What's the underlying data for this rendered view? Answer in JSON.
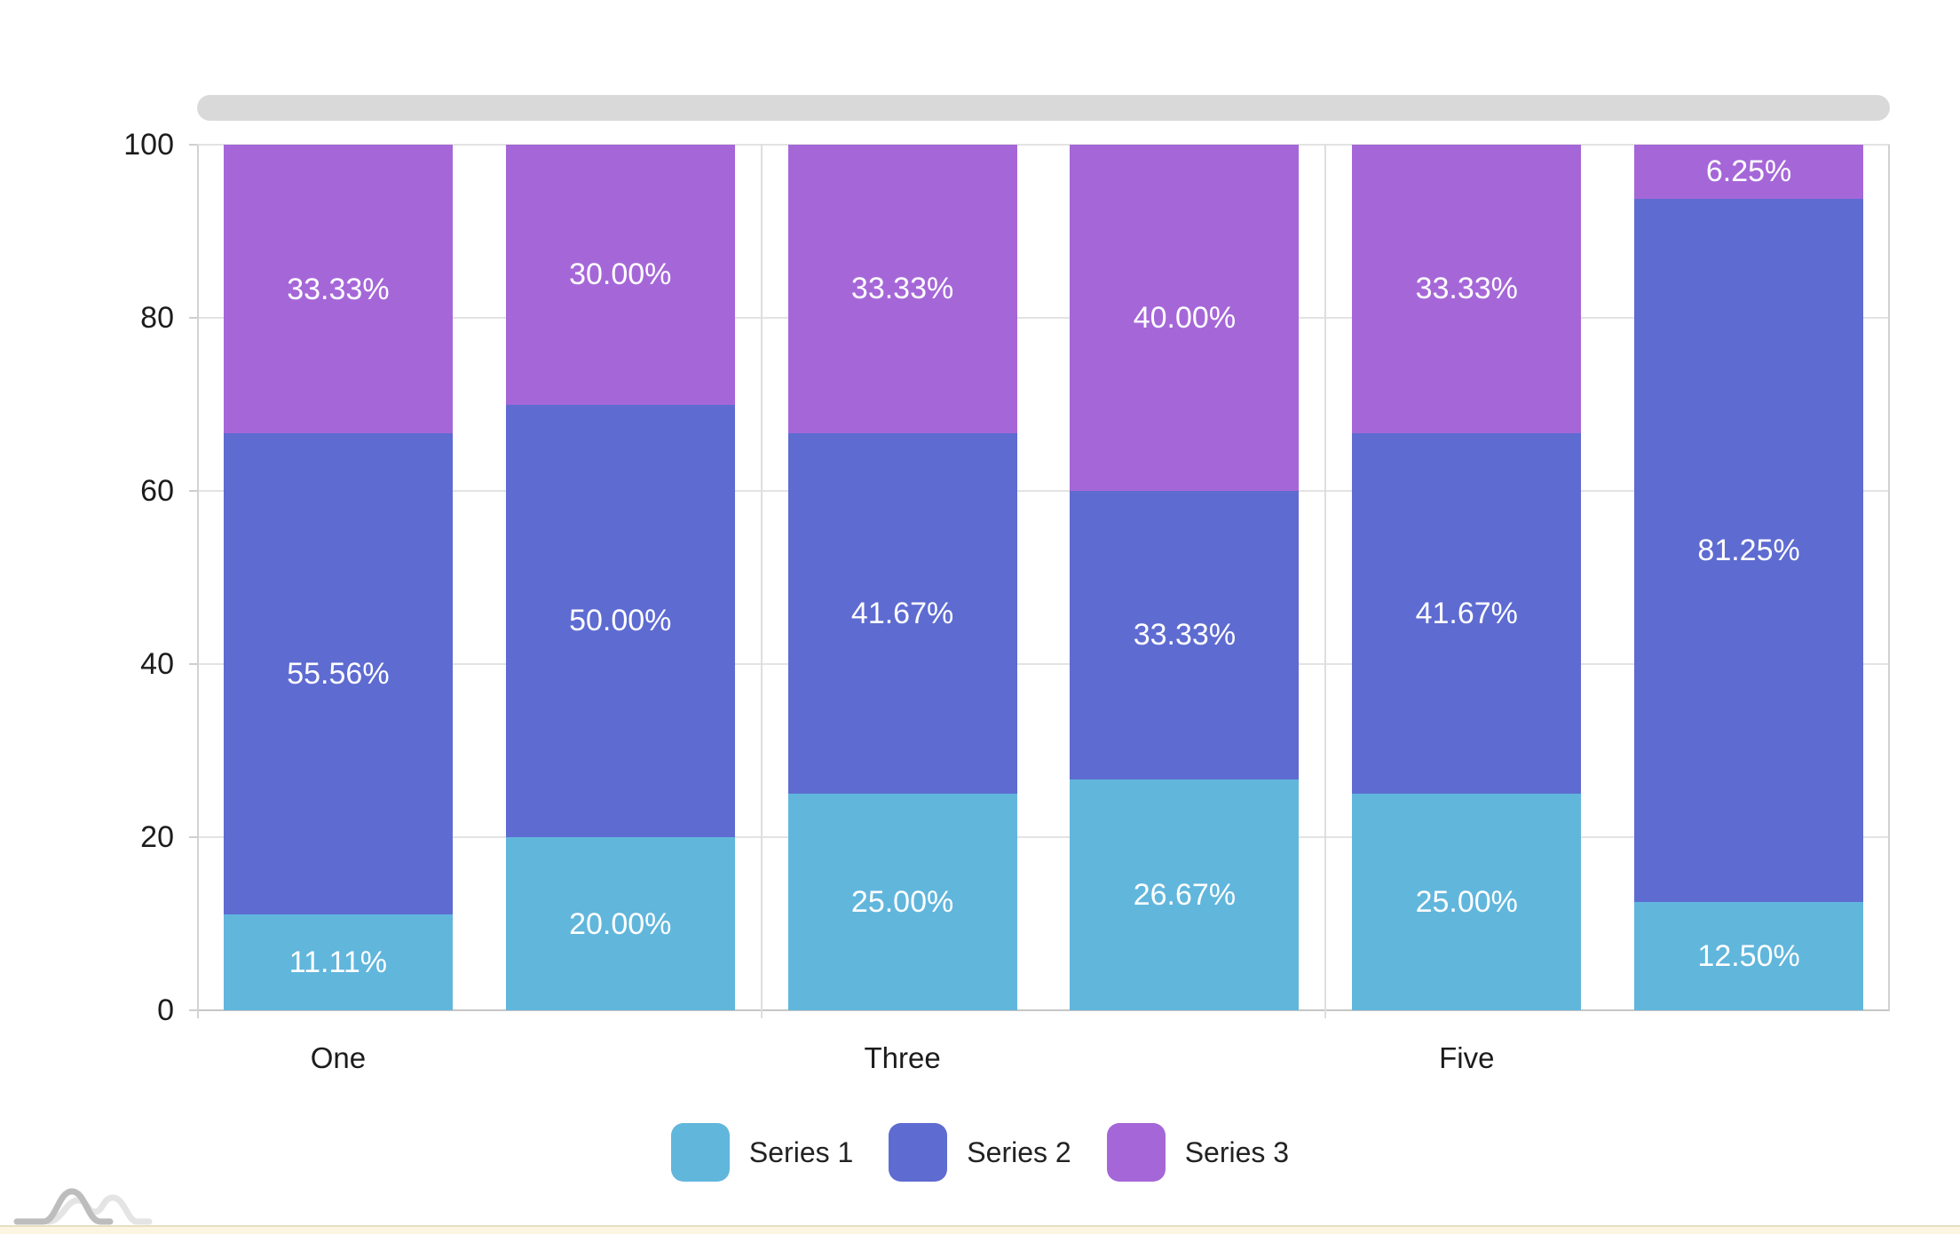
{
  "chart_data": {
    "type": "bar",
    "stacked": true,
    "percent_stacked": true,
    "title": "",
    "xlabel": "",
    "ylabel": "",
    "categories": [
      "One",
      "",
      "Three",
      "",
      "Five",
      ""
    ],
    "series": [
      {
        "name": "Series 1",
        "color": "#61b6dc",
        "values": [
          11.11,
          20.0,
          25.0,
          26.67,
          25.0,
          12.5
        ],
        "labels": [
          "11.11%",
          "20.00%",
          "25.00%",
          "26.67%",
          "25.00%",
          "12.50%"
        ]
      },
      {
        "name": "Series 2",
        "color": "#5e6bd1",
        "values": [
          55.56,
          50.0,
          41.67,
          33.33,
          41.67,
          81.25
        ],
        "labels": [
          "55.56%",
          "50.00%",
          "41.67%",
          "33.33%",
          "41.67%",
          "81.25%"
        ]
      },
      {
        "name": "Series 3",
        "color": "#a567d8",
        "values": [
          33.33,
          30.0,
          33.33,
          40.0,
          33.33,
          6.25
        ],
        "labels": [
          "33.33%",
          "30.00%",
          "33.33%",
          "40.00%",
          "33.33%",
          "6.25%"
        ]
      }
    ],
    "y_axis": {
      "tick_labels": [
        "0",
        "20",
        "40",
        "60",
        "80",
        "100"
      ],
      "tick_values": [
        0,
        20,
        40,
        60,
        80,
        100
      ],
      "range": [
        0,
        100
      ]
    },
    "x_axis": {
      "visible_labels": [
        {
          "bar_index": 0,
          "label": "One"
        },
        {
          "bar_index": 2,
          "label": "Three"
        },
        {
          "bar_index": 4,
          "label": "Five"
        }
      ]
    },
    "grid": true,
    "legend_position": "bottom",
    "value_label_color": "#ffffff"
  },
  "legend": {
    "items": [
      {
        "label": "Series 1",
        "color": "#61b6dc"
      },
      {
        "label": "Series 2",
        "color": "#5e6bd1"
      },
      {
        "label": "Series 3",
        "color": "#a567d8"
      }
    ]
  },
  "colors": {
    "background": "#ffffff",
    "scroll_pill": "#d9d9d9",
    "gridline": "#e3e3e3",
    "axis_text": "#1c1c1c",
    "logo_dark": "#bdbdbd",
    "logo_light": "#e4e4e4",
    "bottom_strip": "#fbf5e1",
    "bottom_strip_border": "#e8dfc2"
  }
}
